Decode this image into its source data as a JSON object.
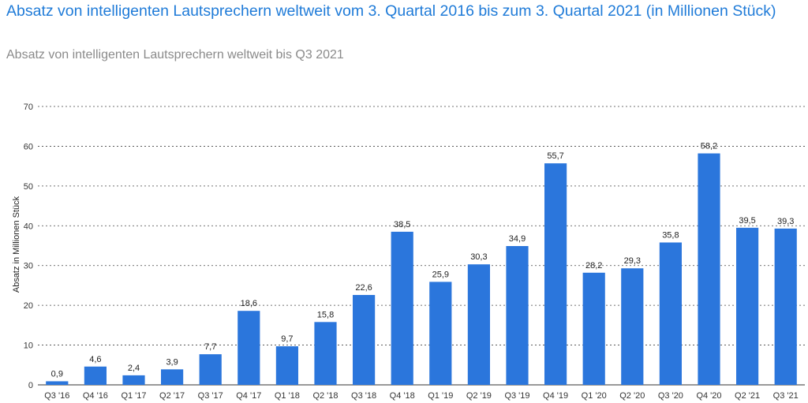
{
  "title": "Absatz von intelligenten Lautsprechern weltweit vom 3. Quartal 2016 bis zum 3. Quartal 2021 (in Millionen Stück)",
  "subtitle": "Absatz von intelligenten Lautsprechern weltweit bis Q3 2021",
  "chart_data": {
    "type": "bar",
    "title": "Absatz von intelligenten Lautsprechern weltweit vom 3. Quartal 2016 bis zum 3. Quartal 2021 (in Millionen Stück)",
    "subtitle": "Absatz von intelligenten Lautsprechern weltweit bis Q3 2021",
    "xlabel": "",
    "ylabel": "Absatz in Millionen Stück",
    "ylim": [
      0,
      70
    ],
    "yticks": [
      0,
      10,
      20,
      30,
      40,
      50,
      60,
      70
    ],
    "grid": true,
    "bar_color": "#2b76dc",
    "categories": [
      "Q3 '16",
      "Q4 '16",
      "Q1 '17",
      "Q2 '17",
      "Q3 '17",
      "Q4 '17",
      "Q1 '18",
      "Q2 '18",
      "Q3 '18",
      "Q4 '18",
      "Q1 '19",
      "Q2 '19",
      "Q3 '19",
      "Q4 '19",
      "Q1 '20",
      "Q2 '20",
      "Q3 '20",
      "Q4 '20",
      "Q2 '21",
      "Q3 '21"
    ],
    "values": [
      0.9,
      4.6,
      2.4,
      3.9,
      7.7,
      18.6,
      9.7,
      15.8,
      22.6,
      38.5,
      25.9,
      30.3,
      34.9,
      55.7,
      28.2,
      29.3,
      35.8,
      58.2,
      39.5,
      39.3
    ],
    "value_labels": [
      "0,9",
      "4,6",
      "2,4",
      "3,9",
      "7,7",
      "18,6",
      "9,7",
      "15,8",
      "22,6",
      "38,5",
      "25,9",
      "30,3",
      "34,9",
      "55,7",
      "28,2",
      "29,3",
      "35,8",
      "58,2",
      "39,5",
      "39,3"
    ]
  }
}
